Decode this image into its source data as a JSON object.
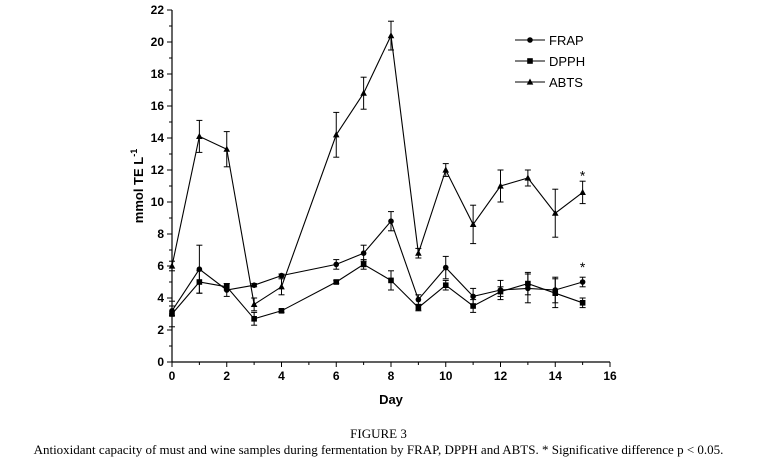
{
  "figure_label": "FIGURE 3",
  "caption": "Antioxidant capacity of must and wine samples during fermentation by FRAP, DPPH and ABTS. * Significative difference p < 0.05.",
  "chart_data": {
    "type": "line",
    "xlabel": "Day",
    "ylabel_main": "mmol TE L",
    "ylabel_sup": "-1",
    "xlim": [
      0,
      16
    ],
    "ylim": [
      0,
      22
    ],
    "xticks": [
      0,
      2,
      4,
      6,
      8,
      10,
      12,
      14,
      16
    ],
    "yticks": [
      0,
      2,
      4,
      6,
      8,
      10,
      12,
      14,
      16,
      18,
      20,
      22
    ],
    "grid": false,
    "legend_position": "top-right",
    "series": [
      {
        "name": "FRAP",
        "marker": "circle",
        "x": [
          0,
          1,
          2,
          3,
          4,
          6,
          7,
          8,
          9,
          10,
          11,
          12,
          13,
          14,
          15
        ],
        "y": [
          3.2,
          5.8,
          4.5,
          4.8,
          5.4,
          6.1,
          6.8,
          8.8,
          3.9,
          5.9,
          4.1,
          4.5,
          4.6,
          4.5,
          5.0
        ],
        "err": [
          0.3,
          1.5,
          0.4,
          0.1,
          0.1,
          0.3,
          0.5,
          0.6,
          0.3,
          0.7,
          0.5,
          0.6,
          0.9,
          0.8,
          0.3
        ]
      },
      {
        "name": "DPPH",
        "marker": "square",
        "x": [
          0,
          1,
          2,
          3,
          4,
          6,
          7,
          8,
          9,
          10,
          11,
          12,
          13,
          14,
          15
        ],
        "y": [
          3.0,
          5.0,
          4.7,
          2.7,
          3.2,
          5.0,
          6.1,
          5.1,
          3.4,
          4.8,
          3.5,
          4.4,
          4.9,
          4.3,
          3.7
        ],
        "err": [
          0.8,
          0.7,
          0.2,
          0.4,
          0.1,
          0.1,
          0.3,
          0.6,
          0.2,
          0.3,
          0.4,
          0.3,
          0.7,
          0.9,
          0.3
        ]
      },
      {
        "name": "ABTS",
        "marker": "triangle",
        "x": [
          0,
          1,
          2,
          3,
          4,
          6,
          7,
          8,
          9,
          10,
          11,
          12,
          13,
          14,
          15
        ],
        "y": [
          6.0,
          14.1,
          13.3,
          3.6,
          4.7,
          14.2,
          16.8,
          20.4,
          6.8,
          12.0,
          8.6,
          11.0,
          11.5,
          9.3,
          10.6
        ],
        "err": [
          0.3,
          1.0,
          1.1,
          0.4,
          0.5,
          1.4,
          1.0,
          0.9,
          0.3,
          0.4,
          1.2,
          1.0,
          0.5,
          1.5,
          0.7
        ]
      }
    ],
    "annotations": [
      {
        "text": "*",
        "x": 15,
        "y": 11.9,
        "series": "ABTS"
      },
      {
        "text": "*",
        "x": 15,
        "y": 6.2,
        "series": "FRAP"
      }
    ]
  }
}
